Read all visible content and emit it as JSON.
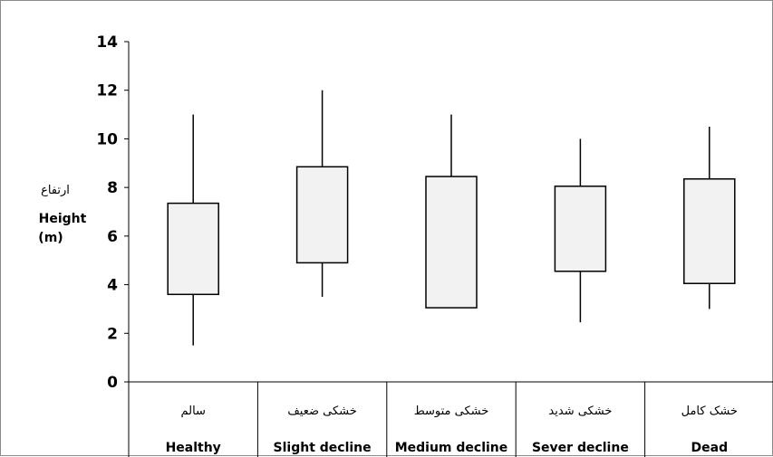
{
  "chart_data": {
    "type": "boxplot",
    "ylabel_fa": "ارتفاع",
    "ylabel_en": "Height",
    "ylabel_unit": "(m)",
    "ylim": [
      0,
      14
    ],
    "yticks": [
      0,
      2,
      4,
      6,
      8,
      10,
      12,
      14
    ],
    "grid": false,
    "categories": [
      {
        "fa": "سالم",
        "en": "Healthy"
      },
      {
        "fa": "خشکی ضعیف",
        "en": "Slight decline"
      },
      {
        "fa": "خشکی متوسط",
        "en": "Medium decline"
      },
      {
        "fa": "خشکی شدید",
        "en": "Sever decline"
      },
      {
        "fa": "خشک کامل",
        "en": "Dead"
      }
    ],
    "boxes": [
      {
        "min": 1.5,
        "q1": 3.6,
        "q3": 7.35,
        "max": 11.0
      },
      {
        "min": 3.5,
        "q1": 4.9,
        "q3": 8.85,
        "max": 12.0
      },
      {
        "min": 3.05,
        "q1": 3.05,
        "q3": 8.45,
        "max": 11.0
      },
      {
        "min": 2.45,
        "q1": 4.55,
        "q3": 8.05,
        "max": 10.0
      },
      {
        "min": 3.0,
        "q1": 4.05,
        "q3": 8.35,
        "max": 10.5
      }
    ],
    "colors": {
      "box_fill": "#f2f2f2",
      "stroke": "#000000"
    }
  }
}
